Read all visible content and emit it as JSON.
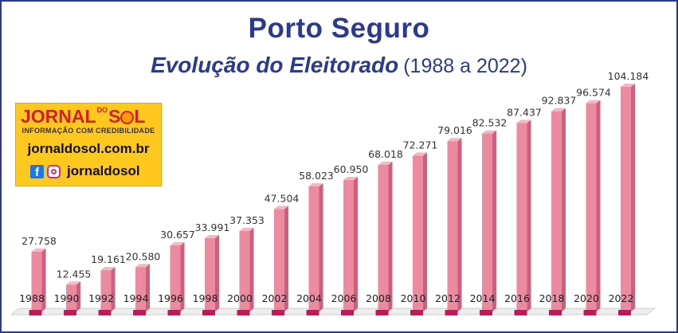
{
  "colors": {
    "title": "#2b3a8f",
    "bar_front": "#ec8aa0",
    "bar_side": "#cf5f7b",
    "bar_top": "#f6b6c4",
    "bar_base": "#c2185b",
    "floor": "#ededed"
  },
  "logo": {
    "name_left": "JORNAL",
    "name_do": "DO",
    "name_s": "S",
    "name_l": "L",
    "tagline": "INFORMAÇÃO COM CREDIBILIDADE",
    "url": "jornaldosol.com.br",
    "handle": "jornaldosol",
    "icons": [
      "facebook-icon",
      "instagram-icon"
    ]
  },
  "chart_data": {
    "type": "bar",
    "title": "Porto Seguro",
    "subtitle": "Evolução do Eleitorado",
    "subtitle_range": "(1988 a 2022)",
    "categories": [
      "1988",
      "1990",
      "1992",
      "1994",
      "1996",
      "1998",
      "2000",
      "2002",
      "2004",
      "2006",
      "2008",
      "2010",
      "2012",
      "2014",
      "2016",
      "2018",
      "2020",
      "2022"
    ],
    "values": [
      27758,
      12455,
      19161,
      20580,
      30657,
      33991,
      37353,
      47504,
      58023,
      60950,
      68018,
      72271,
      79016,
      82532,
      87437,
      92837,
      96574,
      104184
    ],
    "value_labels": [
      "27.758",
      "12.455",
      "19.161",
      "20.580",
      "30.657",
      "33.991",
      "37.353",
      "47.504",
      "58.023",
      "60.950",
      "68.018",
      "72.271",
      "79.016",
      "82.532",
      "87.437",
      "92.837",
      "96.574",
      "104.184"
    ],
    "ylim": [
      0,
      104184
    ],
    "grid": false,
    "legend": "none"
  }
}
